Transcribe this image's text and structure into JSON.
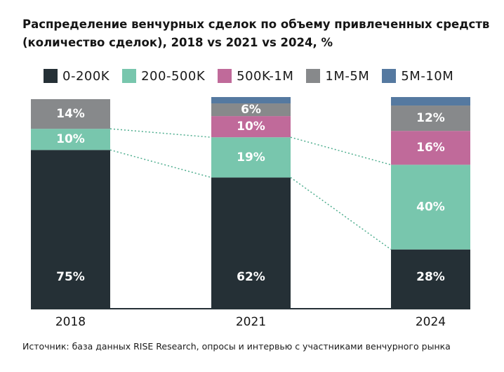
{
  "chart_data": {
    "type": "bar",
    "stacked": true,
    "title_line1": "Распределение венчурных сделок по объему привлеченных средств",
    "title_line2": "(количество сделок), 2018 vs 2021 vs 2024, %",
    "categories": [
      "2018",
      "2021",
      "2024"
    ],
    "series": [
      {
        "name": "0-200K",
        "color": "#253036",
        "values": [
          75,
          62,
          28
        ],
        "labels": [
          "75%",
          "62%",
          "28%"
        ]
      },
      {
        "name": "200-500K",
        "color": "#78c6ad",
        "values": [
          10,
          19,
          40
        ],
        "labels": [
          "10%",
          "19%",
          "40%"
        ]
      },
      {
        "name": "500K-1M",
        "color": "#c06a9a",
        "values": [
          0,
          10,
          16
        ],
        "labels": [
          "",
          "10%",
          "16%"
        ]
      },
      {
        "name": "1M-5M",
        "color": "#87898b",
        "values": [
          14,
          6,
          12
        ],
        "labels": [
          "14%",
          "6%",
          "12%"
        ]
      },
      {
        "name": "5M-10M",
        "color": "#5579a0",
        "values": [
          0,
          3,
          4
        ],
        "labels": [
          "",
          "",
          ""
        ]
      }
    ],
    "ylim": [
      0,
      100
    ],
    "grid": false,
    "legend_position": "top",
    "connector_lines": "dotted"
  },
  "source": "Источник: база данных RISE Research, опросы и интервью с участниками венчурного рынка"
}
